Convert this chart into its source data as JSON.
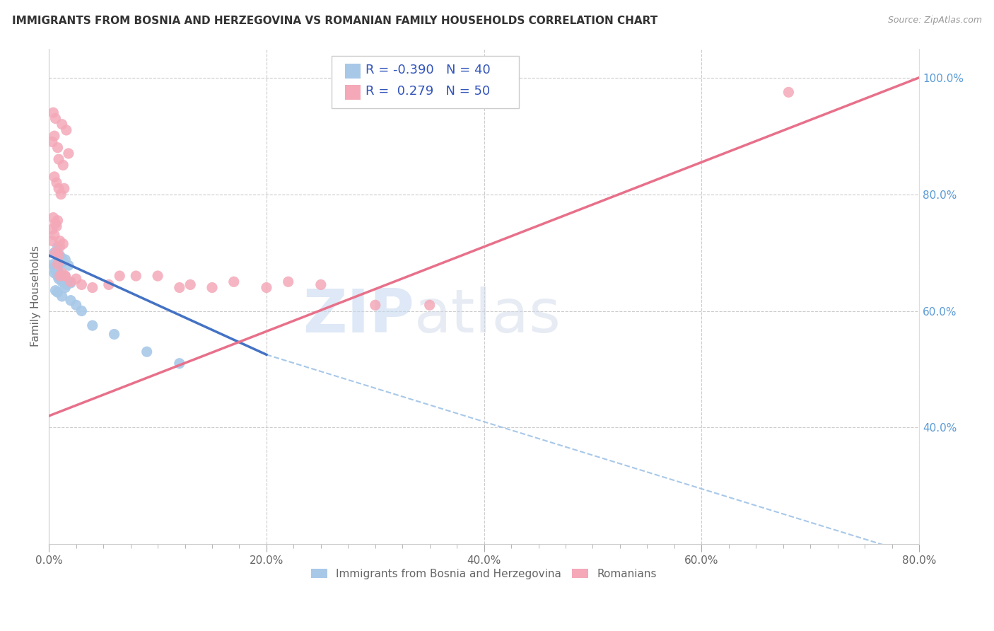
{
  "title": "IMMIGRANTS FROM BOSNIA AND HERZEGOVINA VS ROMANIAN FAMILY HOUSEHOLDS CORRELATION CHART",
  "source": "Source: ZipAtlas.com",
  "ylabel": "Family Households",
  "legend_label1": "Immigrants from Bosnia and Herzegovina",
  "legend_label2": "Romanians",
  "R1": -0.39,
  "N1": 40,
  "R2": 0.279,
  "N2": 50,
  "color1": "#a8c8e8",
  "color2": "#f4a8b8",
  "line1_color": "#4472c4",
  "line2_color": "#e8708a",
  "line_dashed_color": "#a8c8e8",
  "watermark_zip": "ZIP",
  "watermark_atlas": "atlas",
  "xlim": [
    0.0,
    0.8
  ],
  "ylim": [
    0.2,
    1.05
  ],
  "yticks_right": [
    0.4,
    0.6,
    0.8,
    1.0
  ],
  "xtick_minor_count": 8,
  "scatter1_x": [
    0.005,
    0.008,
    0.01,
    0.012,
    0.015,
    0.005,
    0.008,
    0.01,
    0.013,
    0.018,
    0.005,
    0.007,
    0.009,
    0.011,
    0.014,
    0.006,
    0.009,
    0.012,
    0.016,
    0.02,
    0.004,
    0.006,
    0.008,
    0.01,
    0.013,
    0.017,
    0.007,
    0.009,
    0.011,
    0.015,
    0.006,
    0.008,
    0.012,
    0.02,
    0.025,
    0.03,
    0.04,
    0.06,
    0.09,
    0.12
  ],
  "scatter1_y": [
    0.7,
    0.71,
    0.695,
    0.69,
    0.688,
    0.675,
    0.672,
    0.68,
    0.685,
    0.678,
    0.665,
    0.668,
    0.66,
    0.662,
    0.658,
    0.67,
    0.655,
    0.65,
    0.645,
    0.648,
    0.68,
    0.675,
    0.66,
    0.658,
    0.652,
    0.648,
    0.672,
    0.665,
    0.655,
    0.64,
    0.635,
    0.632,
    0.625,
    0.618,
    0.61,
    0.6,
    0.575,
    0.56,
    0.53,
    0.51
  ],
  "scatter2_x": [
    0.003,
    0.005,
    0.007,
    0.008,
    0.01,
    0.003,
    0.006,
    0.009,
    0.012,
    0.015,
    0.004,
    0.006,
    0.008,
    0.01,
    0.013,
    0.005,
    0.007,
    0.009,
    0.011,
    0.014,
    0.003,
    0.005,
    0.008,
    0.012,
    0.016,
    0.004,
    0.006,
    0.009,
    0.013,
    0.018,
    0.01,
    0.015,
    0.02,
    0.025,
    0.03,
    0.04,
    0.055,
    0.065,
    0.08,
    0.1,
    0.12,
    0.13,
    0.15,
    0.17,
    0.2,
    0.22,
    0.25,
    0.3,
    0.35,
    0.68
  ],
  "scatter2_y": [
    0.74,
    0.73,
    0.745,
    0.68,
    0.71,
    0.72,
    0.7,
    0.695,
    0.665,
    0.66,
    0.76,
    0.75,
    0.755,
    0.72,
    0.715,
    0.83,
    0.82,
    0.81,
    0.8,
    0.81,
    0.89,
    0.9,
    0.88,
    0.92,
    0.91,
    0.94,
    0.93,
    0.86,
    0.85,
    0.87,
    0.66,
    0.66,
    0.65,
    0.655,
    0.645,
    0.64,
    0.645,
    0.66,
    0.66,
    0.66,
    0.64,
    0.645,
    0.64,
    0.65,
    0.64,
    0.65,
    0.645,
    0.61,
    0.61,
    0.975
  ],
  "line1_x_start": 0.0,
  "line1_x_solid_end": 0.2,
  "line1_x_end": 0.8,
  "line1_y_start": 0.695,
  "line1_y_solid_end": 0.525,
  "line1_y_end": 0.18,
  "line2_x_start": 0.0,
  "line2_x_end": 0.8,
  "line2_y_start": 0.42,
  "line2_y_end": 1.0
}
